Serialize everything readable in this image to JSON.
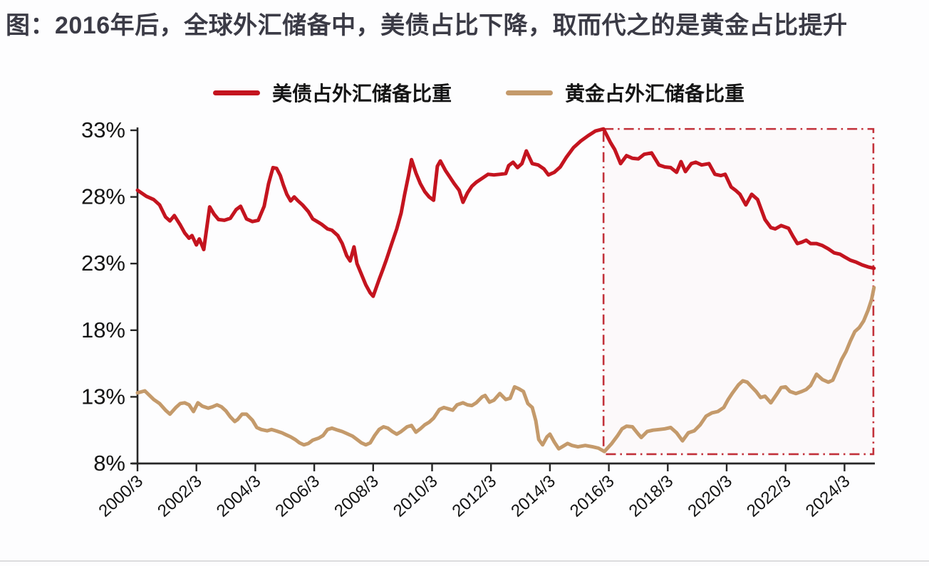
{
  "theme": {
    "background": "#fdfdfe",
    "title_color": "#3b3b46",
    "axis_color": "#262626",
    "text_color": "#141414",
    "treasury_red": "#c4141f",
    "gold_tan": "#c49a6b",
    "highlight_red": "#c2313a"
  },
  "chart_data": {
    "type": "line",
    "title": "图：2016年后，全球外汇储备中，美债占比下降，取而代之的是黄金占比提升",
    "xlabel": "",
    "ylabel": "",
    "ylim": [
      8,
      33
    ],
    "grid": false,
    "legend_position": "top",
    "x_axis": {
      "tick_labels": [
        "2000/3",
        "2002/3",
        "2004/3",
        "2006/3",
        "2008/3",
        "2010/3",
        "2012/3",
        "2014/3",
        "2016/3",
        "2018/3",
        "2020/3",
        "2022/3",
        "2024/3"
      ],
      "tick_t": [
        0,
        2,
        4,
        6,
        8,
        10,
        12,
        14,
        16,
        18,
        20,
        22,
        24
      ]
    },
    "y_axis": {
      "tick_labels": [
        "33%",
        "28%",
        "23%",
        "18%",
        "13%",
        "8%"
      ],
      "tick_values": [
        33,
        28,
        23,
        18,
        13,
        8
      ]
    },
    "annotation_box": {
      "label": "2016/3 onward highlight",
      "style": "dash-dot",
      "t_start": 15.82,
      "t_end": 24.98,
      "v_top": 33.1,
      "v_bottom": 8.7
    },
    "series": [
      {
        "id": "treasury",
        "name": "美债占外汇储备比重",
        "color": "#c4141f",
        "points": [
          [
            0.0,
            28.5
          ],
          [
            0.3,
            28.05
          ],
          [
            0.55,
            27.8
          ],
          [
            0.75,
            27.4
          ],
          [
            0.95,
            26.5
          ],
          [
            1.1,
            26.2
          ],
          [
            1.25,
            26.6
          ],
          [
            1.45,
            25.9
          ],
          [
            1.6,
            25.3
          ],
          [
            1.75,
            24.9
          ],
          [
            1.85,
            25.1
          ],
          [
            2.0,
            24.4
          ],
          [
            2.1,
            24.85
          ],
          [
            2.25,
            24.05
          ],
          [
            2.45,
            27.25
          ],
          [
            2.6,
            26.7
          ],
          [
            2.75,
            26.3
          ],
          [
            2.95,
            26.25
          ],
          [
            3.15,
            26.4
          ],
          [
            3.35,
            27.05
          ],
          [
            3.5,
            27.3
          ],
          [
            3.7,
            26.35
          ],
          [
            3.9,
            26.15
          ],
          [
            4.1,
            26.25
          ],
          [
            4.3,
            27.3
          ],
          [
            4.45,
            29.0
          ],
          [
            4.6,
            30.2
          ],
          [
            4.72,
            30.15
          ],
          [
            4.85,
            29.6
          ],
          [
            4.95,
            28.9
          ],
          [
            5.07,
            28.2
          ],
          [
            5.2,
            27.7
          ],
          [
            5.32,
            28.0
          ],
          [
            5.45,
            27.7
          ],
          [
            5.6,
            27.4
          ],
          [
            5.8,
            26.9
          ],
          [
            5.95,
            26.35
          ],
          [
            6.1,
            26.15
          ],
          [
            6.25,
            25.95
          ],
          [
            6.45,
            25.6
          ],
          [
            6.6,
            25.5
          ],
          [
            6.8,
            25.1
          ],
          [
            6.95,
            24.5
          ],
          [
            7.1,
            23.6
          ],
          [
            7.22,
            23.2
          ],
          [
            7.35,
            24.25
          ],
          [
            7.45,
            23.0
          ],
          [
            7.6,
            22.2
          ],
          [
            7.75,
            21.4
          ],
          [
            7.9,
            20.8
          ],
          [
            8.0,
            20.55
          ],
          [
            8.2,
            21.8
          ],
          [
            8.32,
            22.5
          ],
          [
            8.45,
            23.3
          ],
          [
            8.6,
            24.3
          ],
          [
            8.8,
            25.6
          ],
          [
            8.95,
            26.8
          ],
          [
            9.07,
            28.2
          ],
          [
            9.2,
            29.6
          ],
          [
            9.3,
            30.8
          ],
          [
            9.45,
            29.8
          ],
          [
            9.6,
            29.0
          ],
          [
            9.75,
            28.4
          ],
          [
            9.9,
            28.0
          ],
          [
            10.05,
            27.75
          ],
          [
            10.18,
            30.3
          ],
          [
            10.28,
            30.7
          ],
          [
            10.45,
            30.0
          ],
          [
            10.6,
            29.5
          ],
          [
            10.75,
            29.0
          ],
          [
            10.92,
            28.5
          ],
          [
            11.05,
            27.6
          ],
          [
            11.2,
            28.3
          ],
          [
            11.35,
            28.8
          ],
          [
            11.5,
            29.1
          ],
          [
            11.7,
            29.4
          ],
          [
            11.9,
            29.7
          ],
          [
            12.1,
            29.65
          ],
          [
            12.3,
            29.7
          ],
          [
            12.5,
            29.75
          ],
          [
            12.6,
            30.35
          ],
          [
            12.75,
            30.6
          ],
          [
            12.9,
            30.2
          ],
          [
            13.05,
            30.5
          ],
          [
            13.2,
            31.45
          ],
          [
            13.4,
            30.5
          ],
          [
            13.6,
            30.4
          ],
          [
            13.8,
            30.1
          ],
          [
            13.95,
            29.65
          ],
          [
            14.15,
            29.85
          ],
          [
            14.35,
            30.25
          ],
          [
            14.55,
            30.95
          ],
          [
            14.8,
            31.7
          ],
          [
            15.05,
            32.2
          ],
          [
            15.3,
            32.6
          ],
          [
            15.55,
            32.95
          ],
          [
            15.82,
            33.1
          ],
          [
            16.05,
            32.1
          ],
          [
            16.2,
            31.55
          ],
          [
            16.4,
            30.5
          ],
          [
            16.6,
            31.1
          ],
          [
            16.8,
            30.9
          ],
          [
            17.0,
            30.85
          ],
          [
            17.2,
            31.2
          ],
          [
            17.45,
            31.3
          ],
          [
            17.7,
            30.4
          ],
          [
            17.9,
            30.25
          ],
          [
            18.1,
            30.2
          ],
          [
            18.3,
            29.85
          ],
          [
            18.45,
            30.65
          ],
          [
            18.6,
            29.9
          ],
          [
            18.8,
            30.5
          ],
          [
            18.95,
            30.6
          ],
          [
            19.15,
            30.4
          ],
          [
            19.4,
            30.5
          ],
          [
            19.6,
            29.7
          ],
          [
            19.8,
            29.6
          ],
          [
            19.95,
            29.7
          ],
          [
            20.15,
            28.75
          ],
          [
            20.3,
            28.5
          ],
          [
            20.45,
            28.2
          ],
          [
            20.65,
            27.4
          ],
          [
            20.85,
            28.2
          ],
          [
            21.05,
            27.8
          ],
          [
            21.3,
            26.3
          ],
          [
            21.5,
            25.7
          ],
          [
            21.65,
            25.6
          ],
          [
            21.85,
            25.85
          ],
          [
            22.1,
            25.65
          ],
          [
            22.25,
            25.05
          ],
          [
            22.4,
            24.5
          ],
          [
            22.55,
            24.6
          ],
          [
            22.7,
            24.75
          ],
          [
            22.85,
            24.5
          ],
          [
            23.05,
            24.5
          ],
          [
            23.25,
            24.35
          ],
          [
            23.45,
            24.1
          ],
          [
            23.65,
            23.8
          ],
          [
            23.85,
            23.7
          ],
          [
            24.0,
            23.5
          ],
          [
            24.2,
            23.25
          ],
          [
            24.4,
            23.1
          ],
          [
            24.6,
            22.9
          ],
          [
            24.8,
            22.75
          ],
          [
            25.0,
            22.65
          ]
        ]
      },
      {
        "id": "gold",
        "name": "黄金占外汇储备比重",
        "color": "#c49a6b",
        "points": [
          [
            0.0,
            13.3
          ],
          [
            0.25,
            13.45
          ],
          [
            0.55,
            12.8
          ],
          [
            0.75,
            12.5
          ],
          [
            0.95,
            12.0
          ],
          [
            1.1,
            11.7
          ],
          [
            1.3,
            12.2
          ],
          [
            1.45,
            12.5
          ],
          [
            1.6,
            12.55
          ],
          [
            1.75,
            12.4
          ],
          [
            1.9,
            11.9
          ],
          [
            2.05,
            12.55
          ],
          [
            2.2,
            12.3
          ],
          [
            2.4,
            12.15
          ],
          [
            2.55,
            12.25
          ],
          [
            2.7,
            12.4
          ],
          [
            2.85,
            12.25
          ],
          [
            3.0,
            11.95
          ],
          [
            3.15,
            11.5
          ],
          [
            3.3,
            11.15
          ],
          [
            3.4,
            11.3
          ],
          [
            3.55,
            11.7
          ],
          [
            3.7,
            11.7
          ],
          [
            3.9,
            11.25
          ],
          [
            4.05,
            10.7
          ],
          [
            4.2,
            10.55
          ],
          [
            4.4,
            10.45
          ],
          [
            4.55,
            10.55
          ],
          [
            4.7,
            10.45
          ],
          [
            4.9,
            10.3
          ],
          [
            5.05,
            10.15
          ],
          [
            5.2,
            10.0
          ],
          [
            5.35,
            9.8
          ],
          [
            5.5,
            9.55
          ],
          [
            5.65,
            9.4
          ],
          [
            5.8,
            9.5
          ],
          [
            5.95,
            9.75
          ],
          [
            6.15,
            9.9
          ],
          [
            6.3,
            10.1
          ],
          [
            6.45,
            10.55
          ],
          [
            6.6,
            10.65
          ],
          [
            6.8,
            10.5
          ],
          [
            6.95,
            10.4
          ],
          [
            7.1,
            10.25
          ],
          [
            7.3,
            10.05
          ],
          [
            7.45,
            9.8
          ],
          [
            7.6,
            9.55
          ],
          [
            7.75,
            9.4
          ],
          [
            7.9,
            9.55
          ],
          [
            8.05,
            10.1
          ],
          [
            8.2,
            10.55
          ],
          [
            8.35,
            10.75
          ],
          [
            8.5,
            10.65
          ],
          [
            8.65,
            10.4
          ],
          [
            8.8,
            10.2
          ],
          [
            8.95,
            10.4
          ],
          [
            9.15,
            10.75
          ],
          [
            9.3,
            10.85
          ],
          [
            9.45,
            10.35
          ],
          [
            9.6,
            10.6
          ],
          [
            9.75,
            10.9
          ],
          [
            9.9,
            11.1
          ],
          [
            10.05,
            11.4
          ],
          [
            10.25,
            12.05
          ],
          [
            10.4,
            12.2
          ],
          [
            10.55,
            12.1
          ],
          [
            10.7,
            12.0
          ],
          [
            10.85,
            12.4
          ],
          [
            11.05,
            12.55
          ],
          [
            11.2,
            12.4
          ],
          [
            11.35,
            12.35
          ],
          [
            11.5,
            12.55
          ],
          [
            11.7,
            13.0
          ],
          [
            11.8,
            13.1
          ],
          [
            11.95,
            12.6
          ],
          [
            12.1,
            12.75
          ],
          [
            12.3,
            13.25
          ],
          [
            12.5,
            12.8
          ],
          [
            12.65,
            12.9
          ],
          [
            12.8,
            13.75
          ],
          [
            12.95,
            13.6
          ],
          [
            13.1,
            13.4
          ],
          [
            13.25,
            12.5
          ],
          [
            13.4,
            12.2
          ],
          [
            13.52,
            11.2
          ],
          [
            13.62,
            9.8
          ],
          [
            13.75,
            9.4
          ],
          [
            13.9,
            10.0
          ],
          [
            14.0,
            10.2
          ],
          [
            14.15,
            9.6
          ],
          [
            14.3,
            9.1
          ],
          [
            14.45,
            9.3
          ],
          [
            14.6,
            9.5
          ],
          [
            14.75,
            9.35
          ],
          [
            14.95,
            9.25
          ],
          [
            15.2,
            9.35
          ],
          [
            15.45,
            9.25
          ],
          [
            15.65,
            9.15
          ],
          [
            15.85,
            8.9
          ],
          [
            16.1,
            9.5
          ],
          [
            16.3,
            10.1
          ],
          [
            16.45,
            10.6
          ],
          [
            16.6,
            10.8
          ],
          [
            16.8,
            10.75
          ],
          [
            17.0,
            10.2
          ],
          [
            17.1,
            9.95
          ],
          [
            17.3,
            10.4
          ],
          [
            17.5,
            10.5
          ],
          [
            17.7,
            10.55
          ],
          [
            17.9,
            10.6
          ],
          [
            18.1,
            10.7
          ],
          [
            18.3,
            10.3
          ],
          [
            18.5,
            9.7
          ],
          [
            18.7,
            10.3
          ],
          [
            18.9,
            10.45
          ],
          [
            19.1,
            10.9
          ],
          [
            19.3,
            11.55
          ],
          [
            19.5,
            11.8
          ],
          [
            19.7,
            11.9
          ],
          [
            19.9,
            12.2
          ],
          [
            20.05,
            12.8
          ],
          [
            20.2,
            13.3
          ],
          [
            20.4,
            13.9
          ],
          [
            20.55,
            14.2
          ],
          [
            20.7,
            14.1
          ],
          [
            20.85,
            13.75
          ],
          [
            21.0,
            13.4
          ],
          [
            21.15,
            12.95
          ],
          [
            21.3,
            13.05
          ],
          [
            21.5,
            12.55
          ],
          [
            21.7,
            13.2
          ],
          [
            21.85,
            13.7
          ],
          [
            22.0,
            13.75
          ],
          [
            22.15,
            13.4
          ],
          [
            22.35,
            13.25
          ],
          [
            22.55,
            13.4
          ],
          [
            22.7,
            13.55
          ],
          [
            22.85,
            13.85
          ],
          [
            23.05,
            14.7
          ],
          [
            23.25,
            14.3
          ],
          [
            23.45,
            14.1
          ],
          [
            23.6,
            14.25
          ],
          [
            23.75,
            15.0
          ],
          [
            23.9,
            15.8
          ],
          [
            24.05,
            16.4
          ],
          [
            24.2,
            17.2
          ],
          [
            24.35,
            17.9
          ],
          [
            24.5,
            18.2
          ],
          [
            24.65,
            18.7
          ],
          [
            24.8,
            19.5
          ],
          [
            24.92,
            20.3
          ],
          [
            25.0,
            21.2
          ]
        ]
      }
    ]
  }
}
